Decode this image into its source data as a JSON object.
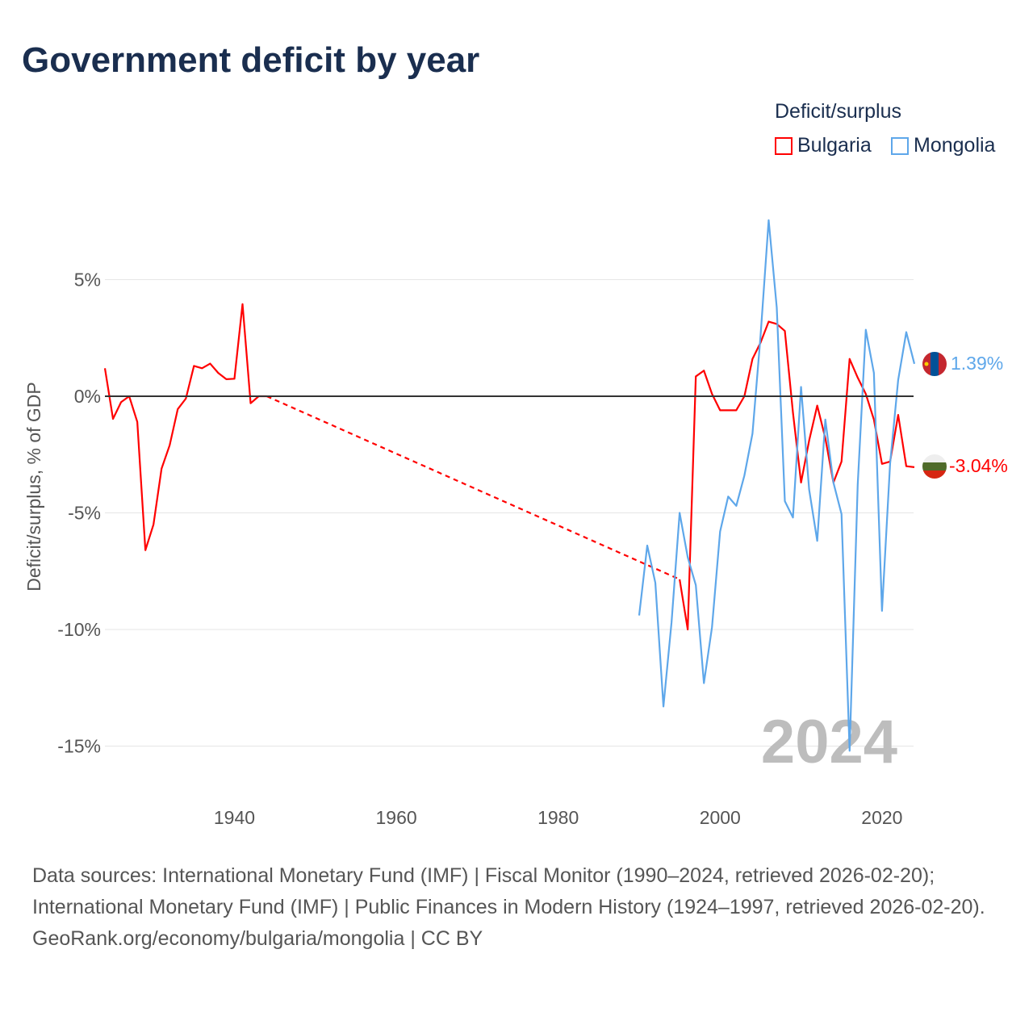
{
  "title": "Government deficit by year",
  "legend": {
    "title": "Deficit/surplus",
    "items": [
      {
        "label": "Bulgaria",
        "color": "#ff0000"
      },
      {
        "label": "Mongolia",
        "color": "#5ea7ea"
      }
    ]
  },
  "year_label": "2024",
  "end_labels": {
    "mongolia": "1.39%",
    "bulgaria": "-3.04%"
  },
  "sources": {
    "line1": "Data sources: International Monetary Fund (IMF) | Fiscal Monitor (1990–2024, retrieved 2026-02-20); International Monetary Fund (IMF) | Public Finances in Modern History (1924–1997, retrieved 2026-02-20).",
    "line2": "GeoRank.org/economy/bulgaria/mongolia | CC BY"
  },
  "chart_data": {
    "type": "line",
    "title": "Government deficit by year",
    "xlabel": "",
    "ylabel": "Deficit/surplus, % of GDP",
    "xlim": [
      1924,
      2024
    ],
    "ylim": [
      -16.5,
      8
    ],
    "xticks": [
      1940,
      1960,
      1980,
      2000,
      2020
    ],
    "yticks": [
      {
        "v": 5,
        "label": "5%"
      },
      {
        "v": 0,
        "label": "0%"
      },
      {
        "v": -5,
        "label": "-5%"
      },
      {
        "v": -10,
        "label": "-10%"
      },
      {
        "v": -15,
        "label": "-15%"
      }
    ],
    "grid": true,
    "legend_position": "top-right",
    "series": [
      {
        "name": "Bulgaria",
        "color": "#ff0000",
        "segments": [
          {
            "dashed": false,
            "x": [
              1924,
              1925,
              1926,
              1927,
              1928,
              1929,
              1930,
              1931,
              1932,
              1933,
              1934,
              1935,
              1936,
              1937,
              1938,
              1939,
              1940,
              1941,
              1942,
              1943,
              1944
            ],
            "y": [
              1.2,
              -0.97,
              -0.25,
              0,
              -1.1,
              -6.6,
              -5.5,
              -3.1,
              -2.1,
              -0.55,
              -0.1,
              1.3,
              1.2,
              1.4,
              1.0,
              0.73,
              0.75,
              3.95,
              -0.3,
              0,
              0
            ]
          },
          {
            "dashed": true,
            "x": [
              1944,
              1995
            ],
            "y": [
              0,
              -7.85
            ]
          },
          {
            "dashed": false,
            "x": [
              1995,
              1996,
              1997,
              1998,
              1999,
              2000,
              2001,
              2002,
              2003,
              2004,
              2005,
              2006,
              2007,
              2008,
              2009,
              2010,
              2011,
              2012,
              2013,
              2014,
              2015,
              2016,
              2017,
              2018,
              2019,
              2020,
              2021,
              2022,
              2023,
              2024
            ],
            "y": [
              -7.85,
              -10.0,
              0.85,
              1.1,
              0.1,
              -0.6,
              -0.6,
              -0.6,
              0,
              1.6,
              2.3,
              3.2,
              3.1,
              2.8,
              -0.7,
              -3.7,
              -1.9,
              -0.4,
              -1.8,
              -3.7,
              -2.8,
              1.6,
              0.8,
              0.1,
              -1.0,
              -2.9,
              -2.8,
              -0.8,
              -3.0,
              -3.04
            ]
          }
        ]
      },
      {
        "name": "Mongolia",
        "color": "#5ea7ea",
        "segments": [
          {
            "dashed": false,
            "x": [
              1990,
              1991,
              1992,
              1993,
              1994,
              1995,
              1996,
              1997,
              1998,
              1999,
              2000,
              2001,
              2002,
              2003,
              2004,
              2005,
              2006,
              2007,
              2008,
              2009,
              2010,
              2011,
              2012,
              2013,
              2014,
              2015,
              2016,
              2017,
              2018,
              2019,
              2020,
              2021,
              2022,
              2023,
              2024
            ],
            "y": [
              -9.4,
              -6.4,
              -8.0,
              -13.3,
              -9.7,
              -5.0,
              -6.9,
              -8.1,
              -12.3,
              -9.9,
              -5.8,
              -4.3,
              -4.7,
              -3.4,
              -1.6,
              2.6,
              7.55,
              3.8,
              -4.5,
              -5.2,
              0.4,
              -4.0,
              -6.2,
              -1.0,
              -3.7,
              -5.05,
              -15.2,
              -3.8,
              2.85,
              1.0,
              -9.2,
              -2.9,
              0.7,
              2.75,
              1.39
            ]
          }
        ]
      }
    ]
  }
}
